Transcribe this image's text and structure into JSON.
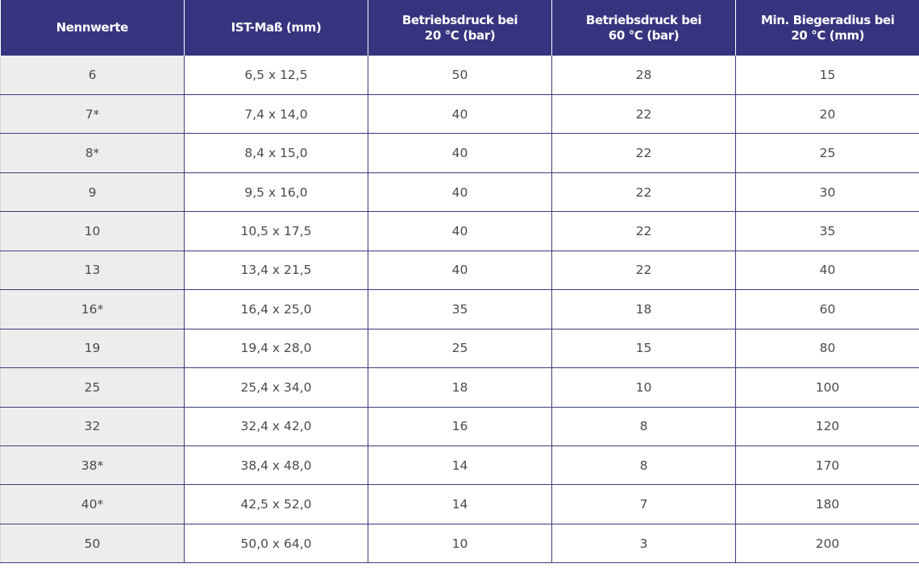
{
  "table": {
    "headers": [
      {
        "lines": [
          "Nennwerte"
        ]
      },
      {
        "lines": [
          "IST-Maß (mm)"
        ]
      },
      {
        "lines": [
          "Betriebsdruck bei",
          "20 °C (bar)"
        ]
      },
      {
        "lines": [
          "Betriebsdruck bei",
          "60 °C (bar)"
        ]
      },
      {
        "lines": [
          "Min. Biegeradius bei",
          "20 °C (mm)"
        ]
      }
    ],
    "rows": [
      [
        "6",
        "6,5 x 12,5",
        "50",
        "28",
        "15"
      ],
      [
        "7*",
        "7,4 x 14,0",
        "40",
        "22",
        "20"
      ],
      [
        "8*",
        "8,4 x 15,0",
        "40",
        "22",
        "25"
      ],
      [
        "9",
        "9,5 x 16,0",
        "40",
        "22",
        "30"
      ],
      [
        "10",
        "10,5 x 17,5",
        "40",
        "22",
        "35"
      ],
      [
        "13",
        "13,4 x 21,5",
        "40",
        "22",
        "40"
      ],
      [
        "16*",
        "16,4 x 25,0",
        "35",
        "18",
        "60"
      ],
      [
        "19",
        "19,4 x 28,0",
        "25",
        "15",
        "80"
      ],
      [
        "25",
        "25,4 x 34,0",
        "18",
        "10",
        "100"
      ],
      [
        "32",
        "32,4 x 42,0",
        "16",
        "8",
        "120"
      ],
      [
        "38*",
        "38,4 x 48,0",
        "14",
        "8",
        "170"
      ],
      [
        "40*",
        "42,5 x 52,0",
        "14",
        "7",
        "180"
      ],
      [
        "50",
        "50,0 x 64,0",
        "10",
        "3",
        "200"
      ]
    ]
  },
  "colors": {
    "header_background": "#37347f",
    "header_text": "#ffffff",
    "first_column_background": "#ededed",
    "cell_text": "#4a4a4a",
    "grid_lines": "#3b3a7c"
  }
}
